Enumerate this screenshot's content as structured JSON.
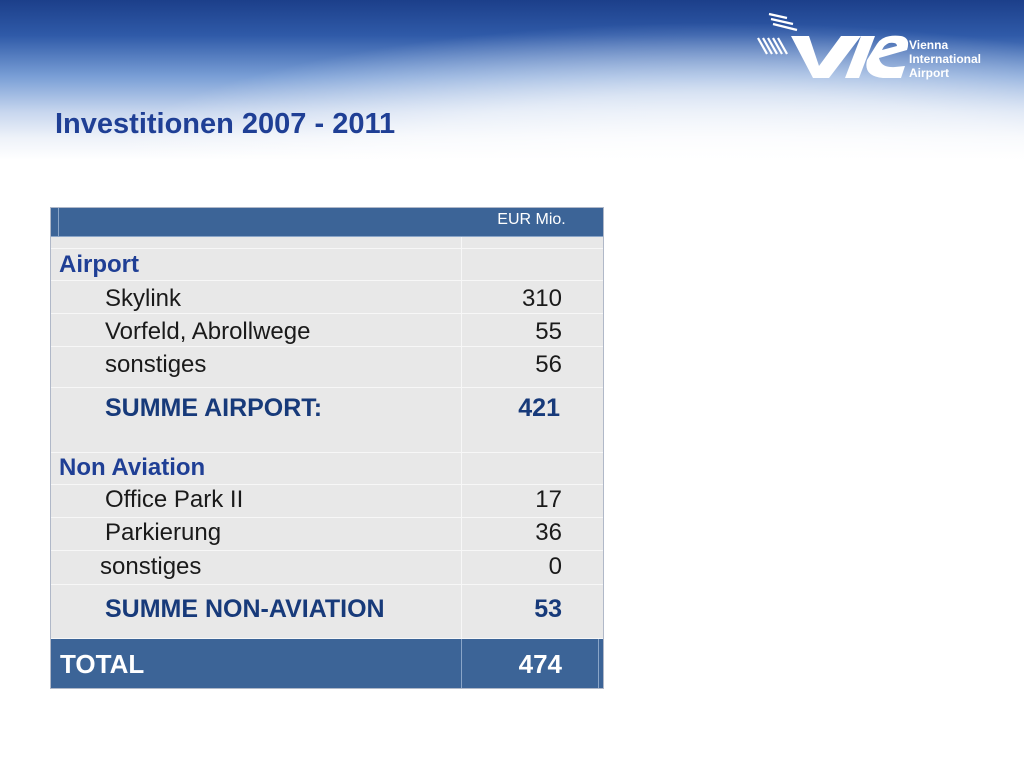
{
  "title": "Investitionen 2007 - 2011",
  "logo": {
    "line1": "Vienna",
    "line2": "International",
    "line3": "Airport",
    "mark": "VIE"
  },
  "table": {
    "unit_header": "EUR Mio.",
    "sections": [
      {
        "heading": "Airport",
        "items": [
          {
            "label": "Skylink",
            "value": "310"
          },
          {
            "label": "Vorfeld, Abrollwege",
            "value": "55"
          },
          {
            "label": "sonstiges",
            "value": "56"
          }
        ],
        "sum_label": "SUMME AIRPORT:",
        "sum_value": "421"
      },
      {
        "heading": "Non Aviation",
        "items": [
          {
            "label": "Office Park II",
            "value": "17"
          },
          {
            "label": "Parkierung",
            "value": "36"
          },
          {
            "label": "sonstiges",
            "value": "0"
          }
        ],
        "sum_label": "SUMME NON-AVIATION",
        "sum_value": "53"
      }
    ],
    "total_label": "TOTAL",
    "total_value": "474"
  },
  "colors": {
    "title": "#1f3f95",
    "header_band": "#3c6497",
    "table_bg": "#e8e8e8"
  }
}
